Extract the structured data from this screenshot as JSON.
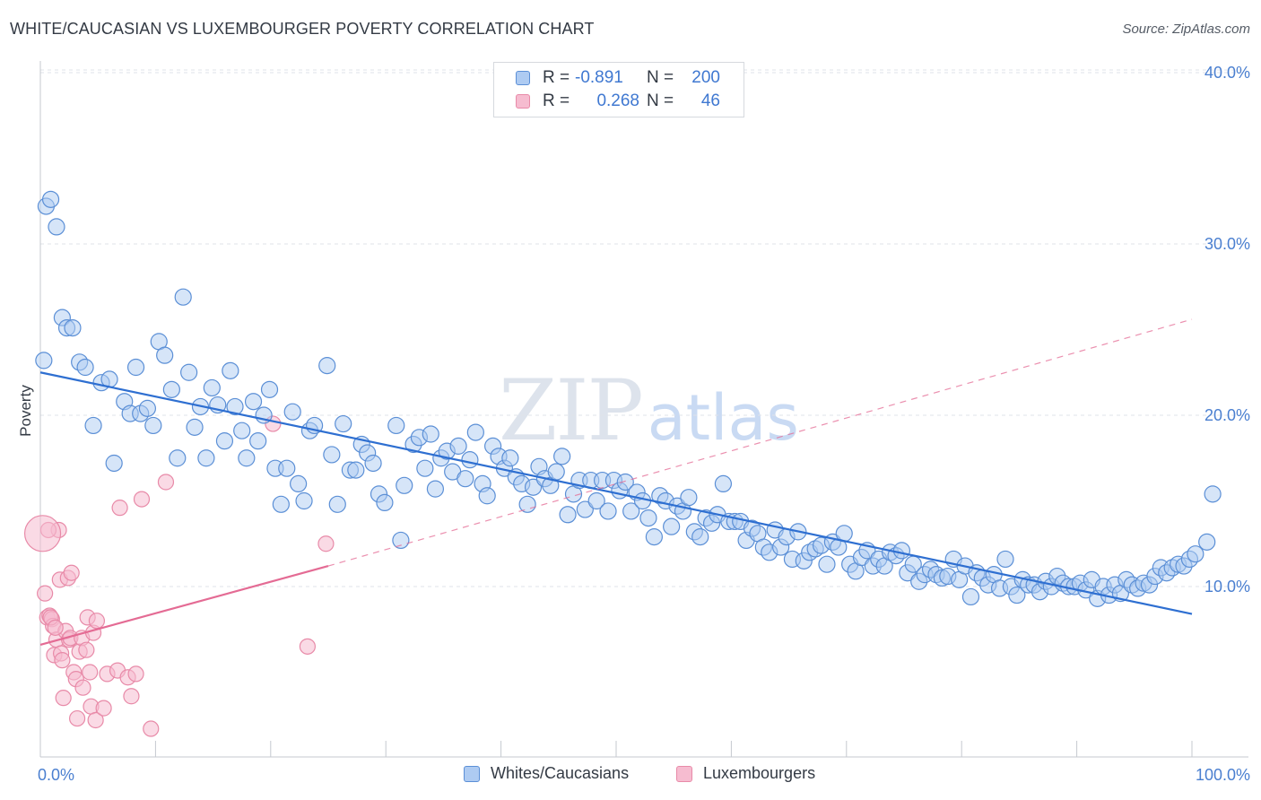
{
  "header": {
    "title": "WHITE/CAUCASIAN VS LUXEMBOURGER POVERTY CORRELATION CHART",
    "source": "Source: ZipAtlas.com"
  },
  "watermark": {
    "zip": "ZIP",
    "atlas": "atlas"
  },
  "legend": {
    "rows": [
      {
        "r_label": "R =",
        "r_value": "-0.891",
        "n_label": "N =",
        "n_value": "200"
      },
      {
        "r_label": "R =",
        "r_value": "0.268",
        "n_label": "N =",
        "n_value": "46"
      }
    ]
  },
  "bottom_legend": {
    "items": [
      {
        "label": "Whites/Caucasians"
      },
      {
        "label": "Luxembourgers"
      }
    ]
  },
  "colors": {
    "blue_fill": "#aecbf2",
    "blue_stroke": "#5b8fd6",
    "blue_line": "#2e6fd1",
    "pink_fill": "#f6bcd0",
    "pink_stroke": "#e88aa8",
    "pink_line": "#e46b94",
    "tick_text": "#4a7fd0",
    "grid": "#dfe3e8"
  },
  "chart_data": {
    "type": "scatter",
    "title": "WHITE/CAUCASIAN VS LUXEMBOURGER POVERTY CORRELATION CHART",
    "xlabel": "",
    "ylabel": "Poverty",
    "xlim": [
      0,
      100
    ],
    "ylim": [
      0,
      40
    ],
    "x_tick_labels": [
      "0.0%",
      "100.0%"
    ],
    "y_ticks": [
      10,
      20,
      30,
      40
    ],
    "y_tick_labels": [
      "10.0%",
      "20.0%",
      "30.0%",
      "40.0%"
    ],
    "grid": true,
    "legend_position": "top-center",
    "series": [
      {
        "name": "Whites/Caucasians",
        "color": "#5b8fd6",
        "trend": {
          "x": [
            0,
            100
          ],
          "y": [
            22.5,
            8.4
          ]
        },
        "points": [
          [
            0.5,
            32.2
          ],
          [
            0.9,
            32.6
          ],
          [
            1.4,
            31.0
          ],
          [
            1.9,
            25.7
          ],
          [
            2.3,
            25.1
          ],
          [
            2.8,
            25.1
          ],
          [
            3.4,
            23.1
          ],
          [
            3.9,
            22.8
          ],
          [
            5.3,
            21.9
          ],
          [
            4.6,
            19.4
          ],
          [
            6.0,
            22.1
          ],
          [
            6.4,
            17.2
          ],
          [
            7.3,
            20.8
          ],
          [
            7.8,
            20.1
          ],
          [
            8.3,
            22.8
          ],
          [
            8.7,
            20.1
          ],
          [
            9.3,
            20.4
          ],
          [
            9.8,
            19.4
          ],
          [
            10.3,
            24.3
          ],
          [
            10.8,
            23.5
          ],
          [
            11.4,
            21.5
          ],
          [
            11.9,
            17.5
          ],
          [
            12.4,
            26.9
          ],
          [
            12.9,
            22.5
          ],
          [
            13.4,
            19.3
          ],
          [
            13.9,
            20.5
          ],
          [
            14.4,
            17.5
          ],
          [
            14.9,
            21.6
          ],
          [
            15.4,
            20.6
          ],
          [
            16.0,
            18.5
          ],
          [
            16.5,
            22.6
          ],
          [
            16.9,
            20.5
          ],
          [
            17.5,
            19.1
          ],
          [
            17.9,
            17.5
          ],
          [
            18.5,
            20.8
          ],
          [
            18.9,
            18.5
          ],
          [
            19.4,
            20.0
          ],
          [
            19.9,
            21.5
          ],
          [
            20.4,
            16.9
          ],
          [
            20.9,
            14.8
          ],
          [
            21.4,
            16.9
          ],
          [
            21.9,
            20.2
          ],
          [
            22.4,
            16.0
          ],
          [
            22.9,
            15.0
          ],
          [
            23.4,
            19.1
          ],
          [
            23.8,
            19.4
          ],
          [
            24.9,
            22.9
          ],
          [
            25.3,
            17.7
          ],
          [
            25.8,
            14.8
          ],
          [
            26.3,
            19.5
          ],
          [
            26.9,
            16.8
          ],
          [
            27.4,
            16.8
          ],
          [
            27.9,
            18.3
          ],
          [
            28.4,
            17.8
          ],
          [
            28.9,
            17.2
          ],
          [
            29.4,
            15.4
          ],
          [
            29.9,
            14.9
          ],
          [
            30.9,
            19.4
          ],
          [
            31.3,
            12.7
          ],
          [
            31.6,
            15.9
          ],
          [
            32.4,
            18.3
          ],
          [
            32.9,
            18.7
          ],
          [
            33.4,
            16.9
          ],
          [
            33.9,
            18.9
          ],
          [
            34.3,
            15.7
          ],
          [
            34.8,
            17.5
          ],
          [
            35.3,
            17.9
          ],
          [
            35.8,
            16.7
          ],
          [
            36.3,
            18.2
          ],
          [
            36.9,
            16.3
          ],
          [
            37.3,
            17.4
          ],
          [
            37.8,
            19.0
          ],
          [
            38.4,
            16.0
          ],
          [
            38.8,
            15.3
          ],
          [
            39.3,
            18.2
          ],
          [
            39.8,
            17.6
          ],
          [
            40.3,
            16.9
          ],
          [
            40.8,
            17.5
          ],
          [
            41.3,
            16.4
          ],
          [
            41.8,
            16.0
          ],
          [
            42.3,
            14.8
          ],
          [
            42.8,
            15.8
          ],
          [
            43.3,
            17.0
          ],
          [
            43.8,
            16.3
          ],
          [
            44.3,
            15.9
          ],
          [
            44.8,
            16.7
          ],
          [
            45.3,
            17.6
          ],
          [
            45.8,
            14.2
          ],
          [
            46.3,
            15.4
          ],
          [
            46.8,
            16.2
          ],
          [
            47.3,
            14.5
          ],
          [
            47.8,
            16.2
          ],
          [
            48.3,
            15.0
          ],
          [
            48.8,
            16.2
          ],
          [
            49.3,
            14.4
          ],
          [
            49.8,
            16.2
          ],
          [
            50.3,
            15.6
          ],
          [
            50.8,
            16.1
          ],
          [
            51.3,
            14.4
          ],
          [
            51.8,
            15.5
          ],
          [
            52.3,
            15.0
          ],
          [
            52.8,
            14.0
          ],
          [
            53.3,
            12.9
          ],
          [
            53.8,
            15.3
          ],
          [
            54.3,
            15.0
          ],
          [
            54.8,
            13.5
          ],
          [
            55.3,
            14.7
          ],
          [
            55.8,
            14.4
          ],
          [
            56.3,
            15.2
          ],
          [
            56.8,
            13.2
          ],
          [
            57.3,
            12.9
          ],
          [
            57.8,
            14.0
          ],
          [
            58.3,
            13.7
          ],
          [
            58.8,
            14.2
          ],
          [
            59.3,
            16.0
          ],
          [
            59.8,
            13.8
          ],
          [
            60.3,
            13.8
          ],
          [
            60.8,
            13.8
          ],
          [
            61.3,
            12.7
          ],
          [
            61.8,
            13.4
          ],
          [
            62.3,
            13.1
          ],
          [
            62.8,
            12.3
          ],
          [
            63.3,
            12.0
          ],
          [
            63.8,
            13.3
          ],
          [
            64.3,
            12.3
          ],
          [
            64.8,
            12.9
          ],
          [
            65.3,
            11.6
          ],
          [
            65.8,
            13.2
          ],
          [
            66.3,
            11.5
          ],
          [
            66.8,
            12.0
          ],
          [
            67.3,
            12.2
          ],
          [
            67.8,
            12.4
          ],
          [
            68.3,
            11.3
          ],
          [
            68.8,
            12.6
          ],
          [
            69.3,
            12.3
          ],
          [
            69.8,
            13.1
          ],
          [
            70.3,
            11.3
          ],
          [
            70.8,
            10.9
          ],
          [
            71.3,
            11.7
          ],
          [
            71.8,
            12.1
          ],
          [
            72.3,
            11.2
          ],
          [
            72.8,
            11.6
          ],
          [
            73.3,
            11.2
          ],
          [
            73.8,
            12.0
          ],
          [
            74.3,
            11.8
          ],
          [
            74.8,
            12.1
          ],
          [
            75.3,
            10.8
          ],
          [
            75.8,
            11.3
          ],
          [
            76.3,
            10.3
          ],
          [
            76.8,
            10.7
          ],
          [
            77.3,
            11.0
          ],
          [
            77.8,
            10.7
          ],
          [
            78.3,
            10.5
          ],
          [
            78.8,
            10.6
          ],
          [
            79.3,
            11.6
          ],
          [
            79.8,
            10.4
          ],
          [
            80.3,
            11.2
          ],
          [
            80.8,
            9.4
          ],
          [
            81.3,
            10.8
          ],
          [
            81.8,
            10.5
          ],
          [
            82.3,
            10.1
          ],
          [
            82.8,
            10.7
          ],
          [
            83.3,
            9.9
          ],
          [
            83.8,
            11.6
          ],
          [
            84.3,
            10.0
          ],
          [
            84.8,
            9.5
          ],
          [
            85.3,
            10.4
          ],
          [
            85.8,
            10.1
          ],
          [
            86.3,
            10.1
          ],
          [
            86.8,
            9.7
          ],
          [
            87.3,
            10.3
          ],
          [
            87.8,
            10.0
          ],
          [
            88.3,
            10.6
          ],
          [
            88.8,
            10.2
          ],
          [
            89.3,
            10.0
          ],
          [
            89.8,
            10.0
          ],
          [
            90.3,
            10.2
          ],
          [
            90.8,
            9.8
          ],
          [
            91.3,
            10.4
          ],
          [
            91.8,
            9.3
          ],
          [
            92.3,
            10.0
          ],
          [
            92.8,
            9.5
          ],
          [
            93.3,
            10.1
          ],
          [
            93.8,
            9.6
          ],
          [
            94.3,
            10.4
          ],
          [
            94.8,
            10.1
          ],
          [
            95.3,
            9.9
          ],
          [
            95.8,
            10.2
          ],
          [
            96.3,
            10.1
          ],
          [
            96.8,
            10.6
          ],
          [
            97.3,
            11.1
          ],
          [
            97.8,
            10.8
          ],
          [
            98.3,
            11.1
          ],
          [
            98.8,
            11.3
          ],
          [
            99.3,
            11.2
          ],
          [
            99.8,
            11.6
          ],
          [
            100.3,
            11.9
          ],
          [
            101.3,
            12.6
          ],
          [
            101.8,
            15.4
          ],
          [
            0.3,
            23.2
          ]
        ]
      },
      {
        "name": "Luxembourgers",
        "color": "#e88aa8",
        "trend": {
          "x": [
            0,
            25
          ],
          "y": [
            6.6,
            11.2
          ],
          "dashed_extension_x": [
            25,
            100
          ],
          "dashed_extension_y": [
            11.2,
            25.6
          ]
        },
        "big_point": [
          0.2,
          13.1
        ],
        "points": [
          [
            0.4,
            9.6
          ],
          [
            0.6,
            8.2
          ],
          [
            0.8,
            8.3
          ],
          [
            1.0,
            8.1
          ],
          [
            1.1,
            7.7
          ],
          [
            1.2,
            6.0
          ],
          [
            1.4,
            6.9
          ],
          [
            1.6,
            13.3
          ],
          [
            1.7,
            10.4
          ],
          [
            1.8,
            6.1
          ],
          [
            1.9,
            5.7
          ],
          [
            2.0,
            3.5
          ],
          [
            2.2,
            7.4
          ],
          [
            2.4,
            10.5
          ],
          [
            2.5,
            6.9
          ],
          [
            2.6,
            7.0
          ],
          [
            2.7,
            10.8
          ],
          [
            2.9,
            5.0
          ],
          [
            3.1,
            4.6
          ],
          [
            3.2,
            2.3
          ],
          [
            3.4,
            6.2
          ],
          [
            3.6,
            7.0
          ],
          [
            3.7,
            4.1
          ],
          [
            4.0,
            6.3
          ],
          [
            4.1,
            8.2
          ],
          [
            4.3,
            5.0
          ],
          [
            4.4,
            3.0
          ],
          [
            4.6,
            7.3
          ],
          [
            4.8,
            2.2
          ],
          [
            4.9,
            8.0
          ],
          [
            5.5,
            2.9
          ],
          [
            5.8,
            4.9
          ],
          [
            6.7,
            5.1
          ],
          [
            6.9,
            14.6
          ],
          [
            7.6,
            4.7
          ],
          [
            7.9,
            3.6
          ],
          [
            8.3,
            4.9
          ],
          [
            8.8,
            15.1
          ],
          [
            9.6,
            1.7
          ],
          [
            10.9,
            16.1
          ],
          [
            20.2,
            19.5
          ],
          [
            23.2,
            6.5
          ],
          [
            24.8,
            12.5
          ],
          [
            0.9,
            8.2
          ],
          [
            1.3,
            7.6
          ],
          [
            0.7,
            13.3
          ]
        ]
      }
    ]
  }
}
